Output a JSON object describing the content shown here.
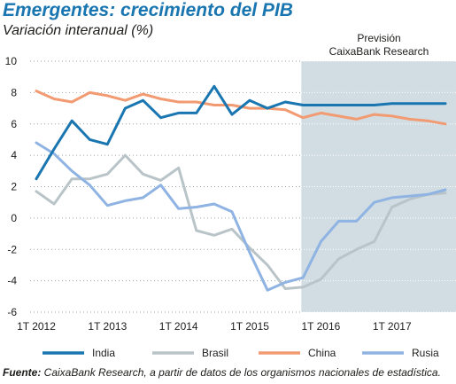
{
  "title": "Emergentes: crecimiento del PIB",
  "subtitle": "Variación interanual (%)",
  "forecast": {
    "line1": "Previsión",
    "line2": "CaixaBank Research"
  },
  "source": {
    "label": "Fuente:",
    "text": " CaixaBank Research, a partir de datos de los organismos nacionales de estadística."
  },
  "colors": {
    "India": "#1a76b0",
    "Brasil": "#b9c4c9",
    "China": "#f29b72",
    "Rusia": "#8fb3e2",
    "forecast_band": "#d1dde3"
  },
  "chart_data": {
    "type": "line",
    "title": "Emergentes: crecimiento del PIB",
    "ylabel": "Variación interanual (%)",
    "ylim": [
      -6,
      10
    ],
    "yticks": [
      -6,
      -4,
      -2,
      0,
      2,
      4,
      6,
      8,
      10
    ],
    "xticks": [
      "1T 2012",
      "1T 2013",
      "1T 2014",
      "1T 2015",
      "1T 2016",
      "1T 2017"
    ],
    "x": [
      "1T 2012",
      "2T 2012",
      "3T 2012",
      "4T 2012",
      "1T 2013",
      "2T 2013",
      "3T 2013",
      "4T 2013",
      "1T 2014",
      "2T 2014",
      "3T 2014",
      "4T 2014",
      "1T 2015",
      "2T 2015",
      "3T 2015",
      "4T 2015",
      "1T 2016",
      "2T 2016",
      "3T 2016",
      "4T 2016",
      "1T 2017",
      "2T 2017",
      "3T 2017",
      "4T 2017"
    ],
    "forecast_start": "4T 2015",
    "legend_position": "bottom",
    "series": [
      {
        "name": "India",
        "values": [
          2.5,
          4.4,
          6.2,
          5.0,
          4.7,
          7.0,
          7.5,
          6.4,
          6.7,
          6.7,
          8.4,
          6.6,
          7.5,
          7.0,
          7.4,
          7.2,
          7.2,
          7.2,
          7.2,
          7.2,
          7.3,
          7.3,
          7.3,
          7.3
        ]
      },
      {
        "name": "Brasil",
        "values": [
          1.7,
          0.9,
          2.5,
          2.5,
          2.8,
          4.0,
          2.8,
          2.4,
          3.2,
          -0.8,
          -1.1,
          -0.7,
          -1.9,
          -3.0,
          -4.5,
          -4.4,
          -3.9,
          -2.6,
          -2.0,
          -1.5,
          0.7,
          1.2,
          1.5,
          1.6
        ]
      },
      {
        "name": "China",
        "values": [
          8.1,
          7.6,
          7.4,
          8.0,
          7.8,
          7.5,
          7.9,
          7.6,
          7.4,
          7.4,
          7.2,
          7.2,
          7.0,
          7.0,
          6.9,
          6.4,
          6.7,
          6.5,
          6.3,
          6.6,
          6.5,
          6.3,
          6.2,
          6.0
        ]
      },
      {
        "name": "Rusia",
        "values": [
          4.8,
          4.1,
          3.0,
          2.1,
          0.8,
          1.1,
          1.3,
          2.1,
          0.6,
          0.7,
          0.9,
          0.4,
          -2.2,
          -4.6,
          -4.1,
          -3.8,
          -1.5,
          -0.2,
          -0.2,
          1.0,
          1.3,
          1.4,
          1.5,
          1.8
        ]
      }
    ]
  }
}
